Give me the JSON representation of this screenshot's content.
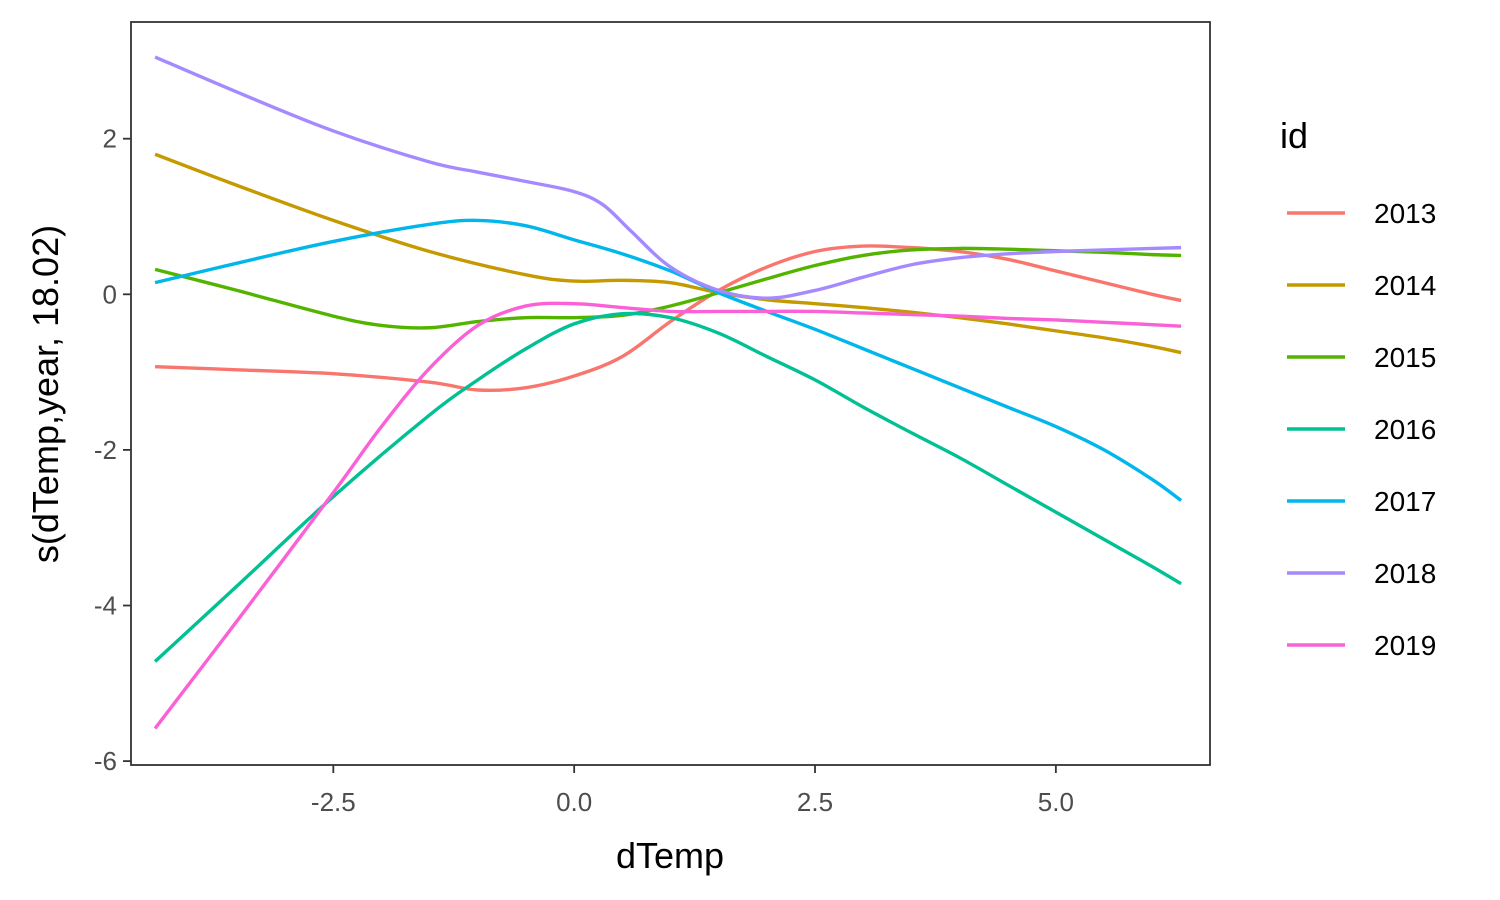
{
  "chart_data": {
    "type": "line",
    "xlabel": "dTemp",
    "ylabel": "s(dTemp,year, 18.02)",
    "xlim": [
      -4.6,
      6.6
    ],
    "ylim": [
      -6.05,
      3.5
    ],
    "x_ticks": [
      -2.5,
      0.0,
      2.5,
      5.0
    ],
    "x_tick_labels": [
      "-2.5",
      "0.0",
      "2.5",
      "5.0"
    ],
    "y_ticks": [
      -6,
      -4,
      -2,
      0,
      2
    ],
    "y_tick_labels": [
      "-6",
      "-4",
      "-2",
      "0",
      "2"
    ],
    "grid": false,
    "legend": {
      "title": "id",
      "position": "right"
    },
    "series": [
      {
        "name": "2013",
        "color": "#F8766D",
        "x": [
          -4.35,
          -3.5,
          -2.5,
          -1.5,
          -1.0,
          -0.5,
          0.0,
          0.5,
          1.0,
          1.5,
          2.0,
          2.5,
          3.0,
          3.5,
          4.0,
          4.5,
          5.0,
          5.5,
          6.0,
          6.3
        ],
        "y": [
          -0.93,
          -0.97,
          -1.02,
          -1.13,
          -1.23,
          -1.2,
          -1.05,
          -0.8,
          -0.35,
          0.05,
          0.35,
          0.55,
          0.62,
          0.6,
          0.55,
          0.45,
          0.3,
          0.15,
          0.0,
          -0.08
        ]
      },
      {
        "name": "2014",
        "color": "#C49A00",
        "x": [
          -4.35,
          -3.5,
          -2.5,
          -1.5,
          -0.5,
          0.0,
          0.5,
          1.0,
          1.5,
          2.0,
          2.5,
          3.0,
          3.5,
          4.0,
          4.5,
          5.0,
          5.5,
          6.0,
          6.3
        ],
        "y": [
          1.8,
          1.4,
          0.95,
          0.55,
          0.25,
          0.17,
          0.18,
          0.15,
          0.02,
          -0.07,
          -0.12,
          -0.17,
          -0.23,
          -0.3,
          -0.38,
          -0.47,
          -0.56,
          -0.67,
          -0.75
        ]
      },
      {
        "name": "2015",
        "color": "#53B400",
        "x": [
          -4.35,
          -3.5,
          -2.5,
          -2.0,
          -1.5,
          -1.0,
          -0.5,
          0.0,
          0.5,
          1.0,
          1.5,
          2.0,
          2.5,
          3.0,
          3.5,
          4.0,
          4.5,
          5.0,
          5.5,
          6.0,
          6.3
        ],
        "y": [
          0.32,
          0.05,
          -0.28,
          -0.4,
          -0.43,
          -0.35,
          -0.3,
          -0.3,
          -0.27,
          -0.15,
          0.02,
          0.2,
          0.37,
          0.5,
          0.57,
          0.59,
          0.58,
          0.56,
          0.54,
          0.51,
          0.5
        ]
      },
      {
        "name": "2016",
        "color": "#00C094",
        "x": [
          -4.35,
          -3.5,
          -2.5,
          -1.5,
          -1.0,
          -0.5,
          0.0,
          0.5,
          1.0,
          1.5,
          2.0,
          2.5,
          3.0,
          3.5,
          4.0,
          4.5,
          5.0,
          5.5,
          6.0,
          6.3
        ],
        "y": [
          -4.72,
          -3.75,
          -2.6,
          -1.55,
          -1.1,
          -0.7,
          -0.38,
          -0.25,
          -0.3,
          -0.5,
          -0.8,
          -1.1,
          -1.45,
          -1.78,
          -2.1,
          -2.45,
          -2.8,
          -3.15,
          -3.5,
          -3.72
        ]
      },
      {
        "name": "2017",
        "color": "#00B6EB",
        "x": [
          -4.35,
          -3.5,
          -2.5,
          -1.5,
          -1.0,
          -0.5,
          0.0,
          0.5,
          1.0,
          1.5,
          2.0,
          2.5,
          3.0,
          3.5,
          4.0,
          4.5,
          5.0,
          5.5,
          6.0,
          6.3
        ],
        "y": [
          0.15,
          0.4,
          0.68,
          0.9,
          0.95,
          0.88,
          0.7,
          0.52,
          0.3,
          0.02,
          -0.22,
          -0.45,
          -0.7,
          -0.95,
          -1.2,
          -1.45,
          -1.7,
          -2.0,
          -2.38,
          -2.65
        ]
      },
      {
        "name": "2018",
        "color": "#A58AFF",
        "x": [
          -4.35,
          -3.5,
          -2.5,
          -1.5,
          -1.0,
          -0.5,
          0.0,
          0.3,
          0.6,
          1.0,
          1.5,
          2.0,
          2.5,
          3.0,
          3.5,
          4.0,
          4.5,
          5.0,
          5.5,
          6.0,
          6.3
        ],
        "y": [
          3.05,
          2.6,
          2.1,
          1.7,
          1.57,
          1.45,
          1.32,
          1.15,
          0.8,
          0.35,
          0.05,
          -0.05,
          0.05,
          0.22,
          0.38,
          0.47,
          0.52,
          0.55,
          0.57,
          0.59,
          0.6
        ]
      },
      {
        "name": "2019",
        "color": "#FB61D7",
        "x": [
          -4.35,
          -3.5,
          -2.5,
          -2.0,
          -1.5,
          -1.0,
          -0.5,
          0.0,
          0.5,
          1.0,
          1.5,
          2.0,
          2.5,
          3.0,
          3.5,
          4.0,
          4.5,
          5.0,
          5.5,
          6.0,
          6.3
        ],
        "y": [
          -5.58,
          -4.2,
          -2.55,
          -1.7,
          -0.95,
          -0.4,
          -0.15,
          -0.12,
          -0.17,
          -0.22,
          -0.22,
          -0.22,
          -0.22,
          -0.24,
          -0.26,
          -0.28,
          -0.31,
          -0.33,
          -0.36,
          -0.39,
          -0.41
        ]
      }
    ]
  }
}
